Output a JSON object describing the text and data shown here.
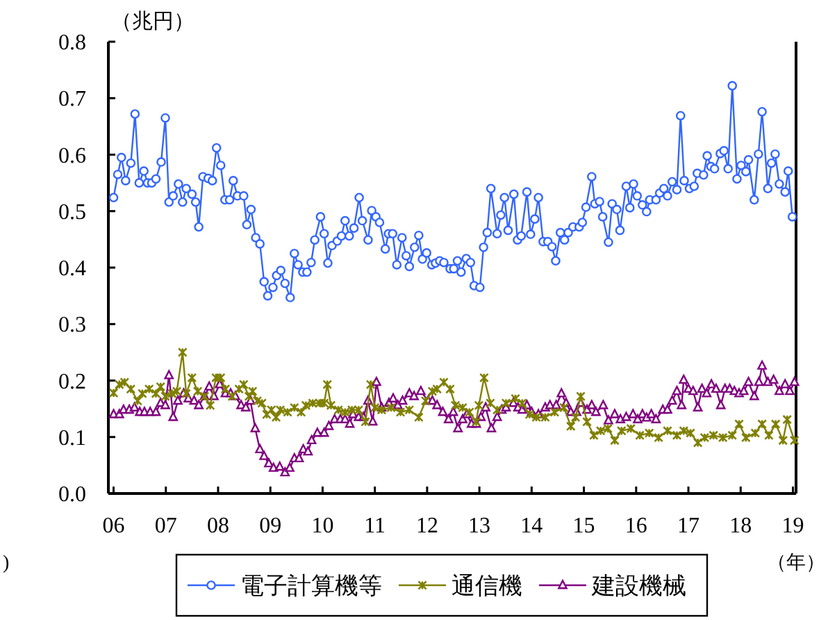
{
  "chart_data": {
    "type": "line",
    "ylabel": "（兆円）",
    "xlabel": "（年）",
    "annotations": [
      ")"
    ],
    "xlim": [
      2005.9,
      2019.06
    ],
    "xticks": [
      {
        "value": 2006,
        "label": "06"
      },
      {
        "value": 2007,
        "label": "07"
      },
      {
        "value": 2008,
        "label": "08"
      },
      {
        "value": 2009,
        "label": "09"
      },
      {
        "value": 2010,
        "label": "10"
      },
      {
        "value": 2011,
        "label": "11"
      },
      {
        "value": 2012,
        "label": "12"
      },
      {
        "value": 2013,
        "label": "13"
      },
      {
        "value": 2014,
        "label": "14"
      },
      {
        "value": 2015,
        "label": "15"
      },
      {
        "value": 2016,
        "label": "16"
      },
      {
        "value": 2017,
        "label": "17"
      },
      {
        "value": 2018,
        "label": "18"
      },
      {
        "value": 2019,
        "label": "19"
      }
    ],
    "ylim": [
      0,
      0.8
    ],
    "yticks": [
      {
        "value": 0,
        "label": "0.0"
      },
      {
        "value": 0.1,
        "label": "0.1"
      },
      {
        "value": 0.2,
        "label": "0.2"
      },
      {
        "value": 0.3,
        "label": "0.3"
      },
      {
        "value": 0.4,
        "label": "0.4"
      },
      {
        "value": 0.5,
        "label": "0.5"
      },
      {
        "value": 0.6,
        "label": "0.6"
      },
      {
        "value": 0.7,
        "label": "0.7"
      },
      {
        "value": 0.8,
        "label": "0.8"
      }
    ],
    "grid": false,
    "legend": "bottom",
    "line_style": "solid",
    "series": [
      {
        "name": "電子計算機等",
        "color": "#3366ff",
        "marker": "circle",
        "x": [
          2006.0,
          2006.08,
          2006.15,
          2006.23,
          2006.33,
          2006.41,
          2006.49,
          2006.58,
          2006.65,
          2006.73,
          2006.81,
          2006.91,
          2006.99,
          2007.06,
          2007.14,
          2007.24,
          2007.32,
          2007.39,
          2007.5,
          2007.57,
          2007.63,
          2007.71,
          2007.81,
          2007.89,
          2007.97,
          2008.05,
          2008.13,
          2008.22,
          2008.29,
          2008.37,
          2008.49,
          2008.55,
          2008.63,
          2008.72,
          2008.8,
          2008.88,
          2008.95,
          2009.05,
          2009.12,
          2009.2,
          2009.28,
          2009.38,
          2009.46,
          2009.53,
          2009.62,
          2009.7,
          2009.78,
          2009.85,
          2009.96,
          2010.03,
          2010.1,
          2010.18,
          2010.28,
          2010.36,
          2010.43,
          2010.51,
          2010.6,
          2010.7,
          2010.76,
          2010.87,
          2010.94,
          2011.02,
          2011.09,
          2011.2,
          2011.26,
          2011.34,
          2011.42,
          2011.52,
          2011.6,
          2011.66,
          2011.76,
          2011.84,
          2011.91,
          2011.99,
          2012.09,
          2012.16,
          2012.24,
          2012.32,
          2012.44,
          2012.51,
          2012.58,
          2012.65,
          2012.75,
          2012.83,
          2012.9,
          2013.01,
          2013.08,
          2013.15,
          2013.22,
          2013.34,
          2013.41,
          2013.48,
          2013.55,
          2013.66,
          2013.73,
          2013.8,
          2013.91,
          2013.98,
          2014.06,
          2014.13,
          2014.22,
          2014.31,
          2014.39,
          2014.46,
          2014.55,
          2014.63,
          2014.7,
          2014.79,
          2014.91,
          2014.97,
          2015.04,
          2015.15,
          2015.21,
          2015.3,
          2015.36,
          2015.47,
          2015.54,
          2015.63,
          2015.69,
          2015.81,
          2015.88,
          2015.95,
          2016.02,
          2016.12,
          2016.2,
          2016.26,
          2016.38,
          2016.45,
          2016.53,
          2016.6,
          2016.69,
          2016.78,
          2016.85,
          2016.92,
          2017.02,
          2017.11,
          2017.17,
          2017.29,
          2017.36,
          2017.43,
          2017.5,
          2017.61,
          2017.68,
          2017.76,
          2017.84,
          2017.93,
          2018.01,
          2018.1,
          2018.15,
          2018.26,
          2018.34,
          2018.41,
          2018.52,
          2018.59,
          2018.66,
          2018.74,
          2018.85,
          2018.91,
          2018.99
        ],
        "values": [
          0.524,
          0.565,
          0.595,
          0.554,
          0.585,
          0.672,
          0.55,
          0.571,
          0.55,
          0.55,
          0.557,
          0.587,
          0.665,
          0.516,
          0.527,
          0.548,
          0.516,
          0.54,
          0.53,
          0.516,
          0.472,
          0.561,
          0.558,
          0.554,
          0.612,
          0.581,
          0.52,
          0.52,
          0.554,
          0.527,
          0.527,
          0.476,
          0.503,
          0.453,
          0.442,
          0.375,
          0.35,
          0.365,
          0.386,
          0.395,
          0.372,
          0.347,
          0.425,
          0.405,
          0.392,
          0.392,
          0.409,
          0.449,
          0.49,
          0.46,
          0.408,
          0.439,
          0.447,
          0.456,
          0.483,
          0.456,
          0.47,
          0.524,
          0.483,
          0.449,
          0.501,
          0.49,
          0.48,
          0.433,
          0.46,
          0.46,
          0.405,
          0.453,
          0.421,
          0.402,
          0.436,
          0.457,
          0.415,
          0.426,
          0.405,
          0.408,
          0.412,
          0.409,
          0.398,
          0.398,
          0.412,
          0.392,
          0.416,
          0.409,
          0.368,
          0.365,
          0.436,
          0.462,
          0.54,
          0.46,
          0.493,
          0.524,
          0.466,
          0.53,
          0.449,
          0.456,
          0.534,
          0.459,
          0.486,
          0.524,
          0.446,
          0.446,
          0.437,
          0.412,
          0.462,
          0.449,
          0.462,
          0.472,
          0.472,
          0.48,
          0.507,
          0.561,
          0.513,
          0.517,
          0.49,
          0.445,
          0.513,
          0.503,
          0.466,
          0.544,
          0.506,
          0.548,
          0.527,
          0.511,
          0.499,
          0.52,
          0.52,
          0.532,
          0.54,
          0.527,
          0.552,
          0.538,
          0.669,
          0.554,
          0.54,
          0.544,
          0.567,
          0.564,
          0.598,
          0.579,
          0.575,
          0.602,
          0.607,
          0.575,
          0.722,
          0.557,
          0.581,
          0.57,
          0.591,
          0.52,
          0.601,
          0.676,
          0.54,
          0.585,
          0.601,
          0.548,
          0.534,
          0.571,
          0.49
        ]
      },
      {
        "name": "通信機",
        "color": "#808000",
        "marker": "cross",
        "x": [
          2006.0,
          2006.11,
          2006.21,
          2006.33,
          2006.46,
          2006.55,
          2006.68,
          2006.81,
          2006.9,
          2006.99,
          2007.12,
          2007.21,
          2007.32,
          2007.39,
          2007.5,
          2007.61,
          2007.74,
          2007.85,
          2007.96,
          2008.05,
          2008.14,
          2008.27,
          2008.4,
          2008.49,
          2008.59,
          2008.66,
          2008.75,
          2008.84,
          2008.93,
          2009.02,
          2009.11,
          2009.19,
          2009.33,
          2009.46,
          2009.59,
          2009.68,
          2009.81,
          2009.94,
          2010.03,
          2010.09,
          2010.16,
          2010.3,
          2010.43,
          2010.56,
          2010.69,
          2010.82,
          2010.92,
          2011.0,
          2011.13,
          2011.31,
          2011.49,
          2011.66,
          2011.84,
          2011.97,
          2012.1,
          2012.19,
          2012.32,
          2012.44,
          2012.54,
          2012.68,
          2012.81,
          2012.94,
          2012.99,
          2013.09,
          2013.21,
          2013.34,
          2013.51,
          2013.69,
          2013.82,
          2013.96,
          2014.09,
          2014.26,
          2014.44,
          2014.62,
          2014.75,
          2014.84,
          2014.94,
          2015.06,
          2015.19,
          2015.32,
          2015.46,
          2015.59,
          2015.72,
          2015.9,
          2016.07,
          2016.25,
          2016.43,
          2016.6,
          2016.78,
          2016.91,
          2017.04,
          2017.18,
          2017.31,
          2017.48,
          2017.66,
          2017.84,
          2017.97,
          2018.1,
          2018.28,
          2018.41,
          2018.54,
          2018.67,
          2018.81,
          2018.89,
          2019.03
        ],
        "values": [
          0.178,
          0.193,
          0.197,
          0.185,
          0.164,
          0.177,
          0.185,
          0.177,
          0.189,
          0.172,
          0.177,
          0.181,
          0.25,
          0.177,
          0.205,
          0.181,
          0.172,
          0.156,
          0.205,
          0.205,
          0.185,
          0.172,
          0.185,
          0.193,
          0.172,
          0.181,
          0.164,
          0.16,
          0.14,
          0.148,
          0.135,
          0.148,
          0.144,
          0.152,
          0.144,
          0.156,
          0.16,
          0.16,
          0.16,
          0.193,
          0.156,
          0.148,
          0.144,
          0.148,
          0.148,
          0.127,
          0.193,
          0.152,
          0.148,
          0.152,
          0.144,
          0.148,
          0.135,
          0.164,
          0.181,
          0.185,
          0.197,
          0.185,
          0.156,
          0.152,
          0.144,
          0.127,
          0.156,
          0.205,
          0.16,
          0.148,
          0.16,
          0.168,
          0.16,
          0.14,
          0.135,
          0.135,
          0.144,
          0.152,
          0.119,
          0.135,
          0.172,
          0.127,
          0.103,
          0.111,
          0.115,
          0.094,
          0.111,
          0.115,
          0.103,
          0.107,
          0.099,
          0.111,
          0.103,
          0.111,
          0.107,
          0.09,
          0.099,
          0.103,
          0.099,
          0.103,
          0.123,
          0.099,
          0.107,
          0.123,
          0.103,
          0.123,
          0.094,
          0.131,
          0.094
        ]
      },
      {
        "name": "建設機械",
        "color": "#800080",
        "marker": "triangle",
        "x": [
          2006.0,
          2006.11,
          2006.19,
          2006.3,
          2006.4,
          2006.5,
          2006.59,
          2006.7,
          2006.81,
          2006.9,
          2006.99,
          2007.06,
          2007.14,
          2007.23,
          2007.34,
          2007.43,
          2007.54,
          2007.63,
          2007.74,
          2007.83,
          2007.92,
          2008.03,
          2008.14,
          2008.24,
          2008.33,
          2008.44,
          2008.53,
          2008.62,
          2008.71,
          2008.8,
          2008.88,
          2008.97,
          2009.06,
          2009.18,
          2009.28,
          2009.37,
          2009.46,
          2009.55,
          2009.63,
          2009.72,
          2009.79,
          2009.9,
          2010.03,
          2010.12,
          2010.23,
          2010.34,
          2010.43,
          2010.52,
          2010.58,
          2010.69,
          2010.78,
          2010.87,
          2010.96,
          2011.03,
          2011.13,
          2011.27,
          2011.35,
          2011.44,
          2011.53,
          2011.66,
          2011.75,
          2011.88,
          2012.02,
          2012.1,
          2012.19,
          2012.3,
          2012.41,
          2012.5,
          2012.59,
          2012.68,
          2012.76,
          2012.85,
          2012.94,
          2013.03,
          2013.12,
          2013.23,
          2013.34,
          2013.43,
          2013.51,
          2013.65,
          2013.74,
          2013.82,
          2013.91,
          2014.0,
          2014.13,
          2014.26,
          2014.35,
          2014.47,
          2014.57,
          2014.66,
          2014.75,
          2014.86,
          2014.94,
          2015.06,
          2015.15,
          2015.23,
          2015.37,
          2015.47,
          2015.59,
          2015.7,
          2015.81,
          2015.94,
          2016.03,
          2016.12,
          2016.2,
          2016.29,
          2016.38,
          2016.51,
          2016.6,
          2016.69,
          2016.78,
          2016.87,
          2016.91,
          2017.0,
          2017.09,
          2017.18,
          2017.26,
          2017.35,
          2017.44,
          2017.53,
          2017.62,
          2017.7,
          2017.79,
          2017.88,
          2017.97,
          2018.06,
          2018.15,
          2018.26,
          2018.35,
          2018.41,
          2018.52,
          2018.63,
          2018.74,
          2018.85,
          2018.94,
          2019.03
        ],
        "values": [
          0.14,
          0.14,
          0.148,
          0.148,
          0.152,
          0.144,
          0.144,
          0.144,
          0.144,
          0.16,
          0.156,
          0.209,
          0.135,
          0.164,
          0.177,
          0.168,
          0.164,
          0.156,
          0.172,
          0.189,
          0.172,
          0.193,
          0.177,
          0.177,
          0.172,
          0.156,
          0.152,
          0.164,
          0.115,
          0.078,
          0.066,
          0.053,
          0.045,
          0.047,
          0.037,
          0.045,
          0.062,
          0.062,
          0.078,
          0.074,
          0.094,
          0.107,
          0.107,
          0.119,
          0.131,
          0.131,
          0.131,
          0.123,
          0.14,
          0.135,
          0.135,
          0.164,
          0.127,
          0.197,
          0.152,
          0.16,
          0.168,
          0.156,
          0.164,
          0.177,
          0.172,
          0.181,
          0.164,
          0.164,
          0.156,
          0.144,
          0.131,
          0.144,
          0.115,
          0.131,
          0.14,
          0.123,
          0.123,
          0.135,
          0.152,
          0.115,
          0.135,
          0.148,
          0.152,
          0.16,
          0.152,
          0.148,
          0.156,
          0.144,
          0.14,
          0.152,
          0.156,
          0.156,
          0.177,
          0.16,
          0.144,
          0.144,
          0.16,
          0.148,
          0.156,
          0.144,
          0.156,
          0.129,
          0.14,
          0.131,
          0.135,
          0.14,
          0.131,
          0.14,
          0.134,
          0.14,
          0.131,
          0.148,
          0.148,
          0.164,
          0.181,
          0.156,
          0.201,
          0.185,
          0.181,
          0.152,
          0.185,
          0.177,
          0.193,
          0.185,
          0.156,
          0.185,
          0.185,
          0.181,
          0.177,
          0.181,
          0.197,
          0.172,
          0.197,
          0.226,
          0.197,
          0.201,
          0.181,
          0.193,
          0.181,
          0.197
        ]
      }
    ]
  }
}
